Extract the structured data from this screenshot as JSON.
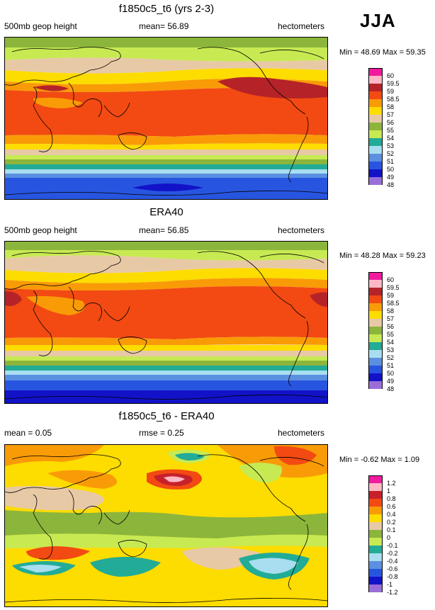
{
  "season": "JJA",
  "panels": [
    {
      "title": "f1850c5_t6 (yrs 2-3)",
      "left": "500mb geop height",
      "center": "mean=  56.89",
      "right": "hectometers",
      "minmax": "Min =  48.69 Max =  59.35",
      "legend": {
        "labels": [
          "60",
          "59.5",
          "59",
          "58.5",
          "58",
          "57",
          "56",
          "55",
          "54",
          "53",
          "52",
          "51",
          "50",
          "49",
          "48"
        ],
        "colors": [
          "#f21a9e",
          "#ffb7c5",
          "#b52328",
          "#f24a12",
          "#f99b07",
          "#fddc00",
          "#e8c9a6",
          "#8cb53c",
          "#c7ea52",
          "#22ab96",
          "#a8def0",
          "#5b8fe0",
          "#2855e0",
          "#1212c8",
          "#9a6ed8"
        ]
      }
    },
    {
      "title": "ERA40",
      "left": "500mb geop height",
      "center": "mean=  56.85",
      "right": "hectometers",
      "minmax": "Min =  48.28 Max =  59.23",
      "legend": {
        "labels": [
          "60",
          "59.5",
          "59",
          "58.5",
          "58",
          "57",
          "56",
          "55",
          "54",
          "53",
          "52",
          "51",
          "50",
          "49",
          "48"
        ],
        "colors": [
          "#f21a9e",
          "#ffb7c5",
          "#b52328",
          "#f24a12",
          "#f99b07",
          "#fddc00",
          "#e8c9a6",
          "#8cb53c",
          "#c7ea52",
          "#22ab96",
          "#a8def0",
          "#5b8fe0",
          "#2855e0",
          "#1212c8",
          "#9a6ed8"
        ]
      }
    },
    {
      "title": "f1850c5_t6 - ERA40",
      "left": "mean =   0.05",
      "center": "rmse =   0.25",
      "right": "hectometers",
      "minmax": "Min =  -0.62 Max =   1.09",
      "legend": {
        "labels": [
          "1.2",
          "1",
          "0.8",
          "0.6",
          "0.4",
          "0.2",
          "0.1",
          "0",
          "-0.1",
          "-0.2",
          "-0.4",
          "-0.6",
          "-0.8",
          "-1",
          "-1.2"
        ],
        "colors": [
          "#f21a9e",
          "#ffb7c5",
          "#c8202a",
          "#f24a12",
          "#f99b07",
          "#fddc00",
          "#e8c9a6",
          "#8cb53c",
          "#c7ea52",
          "#22ab96",
          "#a8def0",
          "#5b8fe0",
          "#2855e0",
          "#1212c8",
          "#9a6ed8"
        ]
      }
    }
  ]
}
